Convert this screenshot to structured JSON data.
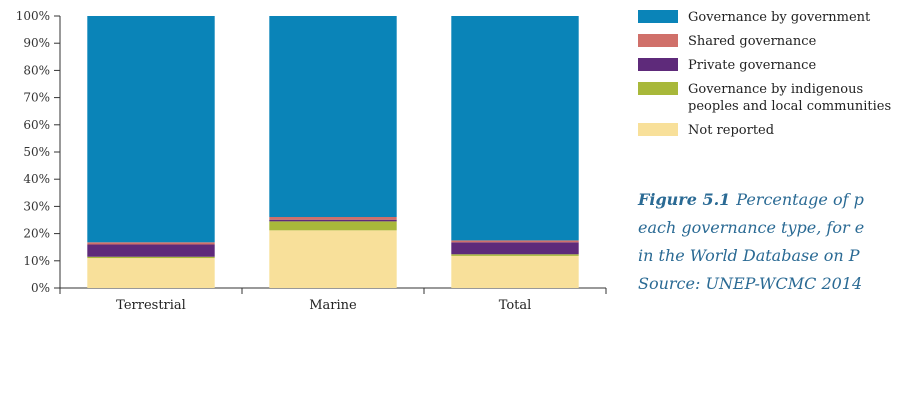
{
  "chart_data": {
    "type": "bar",
    "stacked": true,
    "categories": [
      "Terrestrial",
      "Marine",
      "Total"
    ],
    "y_ticks": [
      "0%",
      "10%",
      "20%",
      "30%",
      "40%",
      "50%",
      "60%",
      "70%",
      "80%",
      "90%",
      "100%"
    ],
    "ylim": [
      0,
      100
    ],
    "series": [
      {
        "name": "Not reported",
        "color": "#f8e09a",
        "values": [
          11.0,
          21.2,
          11.8
        ]
      },
      {
        "name": "Governance by indigenous peoples and local communities",
        "name_lines": [
          "Governance by indigenous",
          "peoples and local communities"
        ],
        "color": "#a8b83a",
        "values": [
          0.5,
          3.3,
          0.6
        ]
      },
      {
        "name": "Private governance",
        "name_lines": [
          "Private governance"
        ],
        "color": "#5e2a7a",
        "values": [
          4.5,
          0.6,
          4.4
        ]
      },
      {
        "name": "Shared governance",
        "name_lines": [
          "Shared governance"
        ],
        "color": "#d0706a",
        "values": [
          0.8,
          1.0,
          0.7
        ]
      },
      {
        "name": "Governance by government",
        "name_lines": [
          "Governance by government"
        ],
        "color": "#0a84b8",
        "values": [
          83.2,
          73.9,
          82.5
        ]
      }
    ],
    "legend_placement": "top-right"
  },
  "caption": {
    "label": "Figure 5.1",
    "lines": [
      "Percentage of p",
      "each governance type, for e",
      "in the World Database on P",
      "Source: UNEP-WCMC 2014"
    ]
  }
}
